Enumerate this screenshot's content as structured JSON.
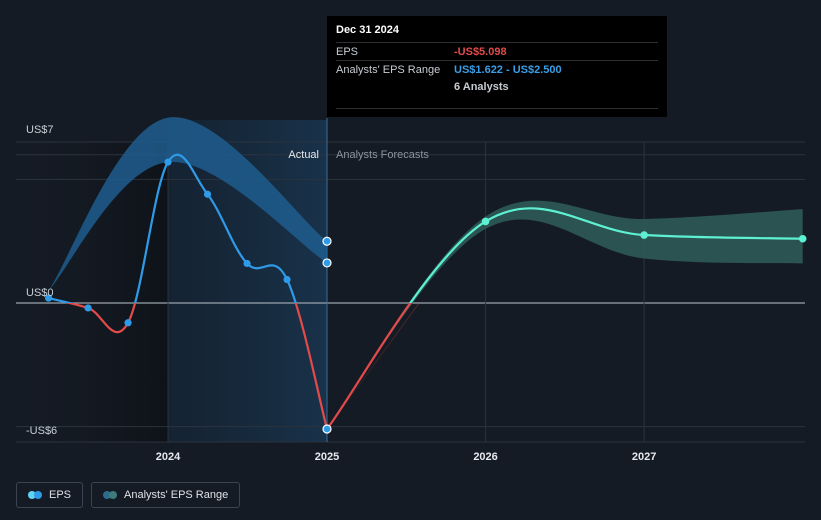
{
  "colors": {
    "eps_positive": "#2f9be8",
    "eps_negative": "#e34a4a",
    "forecast_positive": "#5ef0d2",
    "forecast_negative": "#e34a4a",
    "band_past": "#1f5d8e",
    "band_forecast": "#2e5a57",
    "tooltip_eps": "#e04b4b",
    "tooltip_range": "#3a9ee6"
  },
  "chart_data": {
    "type": "line",
    "x_ticks": [
      "2024",
      "2025",
      "2026",
      "2027"
    ],
    "xlim": [
      "2023-03-31",
      "2027-12-31"
    ],
    "ylim": [
      -6,
      7
    ],
    "y_ticks": [
      "US$7",
      "US$0",
      "-US$6"
    ],
    "divider_labels": {
      "left": "Actual",
      "right": "Analysts Forecasts"
    },
    "series": [
      {
        "name": "EPS",
        "kind": "actual",
        "points": [
          {
            "x": "2023-03-31",
            "y": 0.2
          },
          {
            "x": "2023-06-30",
            "y": -0.2
          },
          {
            "x": "2023-09-30",
            "y": -0.8
          },
          {
            "x": "2023-12-31",
            "y": 5.7
          },
          {
            "x": "2024-03-31",
            "y": 4.4
          },
          {
            "x": "2024-06-30",
            "y": 1.6
          },
          {
            "x": "2024-09-30",
            "y": 0.95
          },
          {
            "x": "2024-12-31",
            "y": -5.098
          }
        ]
      },
      {
        "name": "EPS",
        "kind": "forecast",
        "points": [
          {
            "x": "2024-12-31",
            "y": -5.098
          },
          {
            "x": "2025-12-31",
            "y": 3.3
          },
          {
            "x": "2026-12-31",
            "y": 2.75
          },
          {
            "x": "2027-12-31",
            "y": 2.6
          }
        ]
      },
      {
        "name": "Analysts' EPS Range",
        "kind": "band_past",
        "points": [
          {
            "x": "2023-03-31",
            "low": 0.5,
            "high": 0.5
          },
          {
            "x": "2023-12-31",
            "low": 5.7,
            "high": 7.5
          },
          {
            "x": "2024-12-31",
            "low": 1.622,
            "high": 2.5
          }
        ]
      },
      {
        "name": "Analysts' EPS Range",
        "kind": "band_forecast",
        "points": [
          {
            "x": "2024-12-31",
            "low": -5.098,
            "high": -5.098
          },
          {
            "x": "2025-12-31",
            "low": 3.0,
            "high": 3.5
          },
          {
            "x": "2026-12-31",
            "low": 1.8,
            "high": 3.4
          },
          {
            "x": "2027-12-31",
            "low": 1.6,
            "high": 3.8
          }
        ]
      }
    ]
  },
  "tooltip": {
    "date": "Dec 31 2024",
    "eps_label": "EPS",
    "eps_value": "-US$5.098",
    "range_label": "Analysts' EPS Range",
    "range_value": "US$1.622 - US$2.500",
    "analysts": "6 Analysts"
  },
  "legend": {
    "eps_label": "EPS",
    "range_label": "Analysts' EPS Range"
  }
}
